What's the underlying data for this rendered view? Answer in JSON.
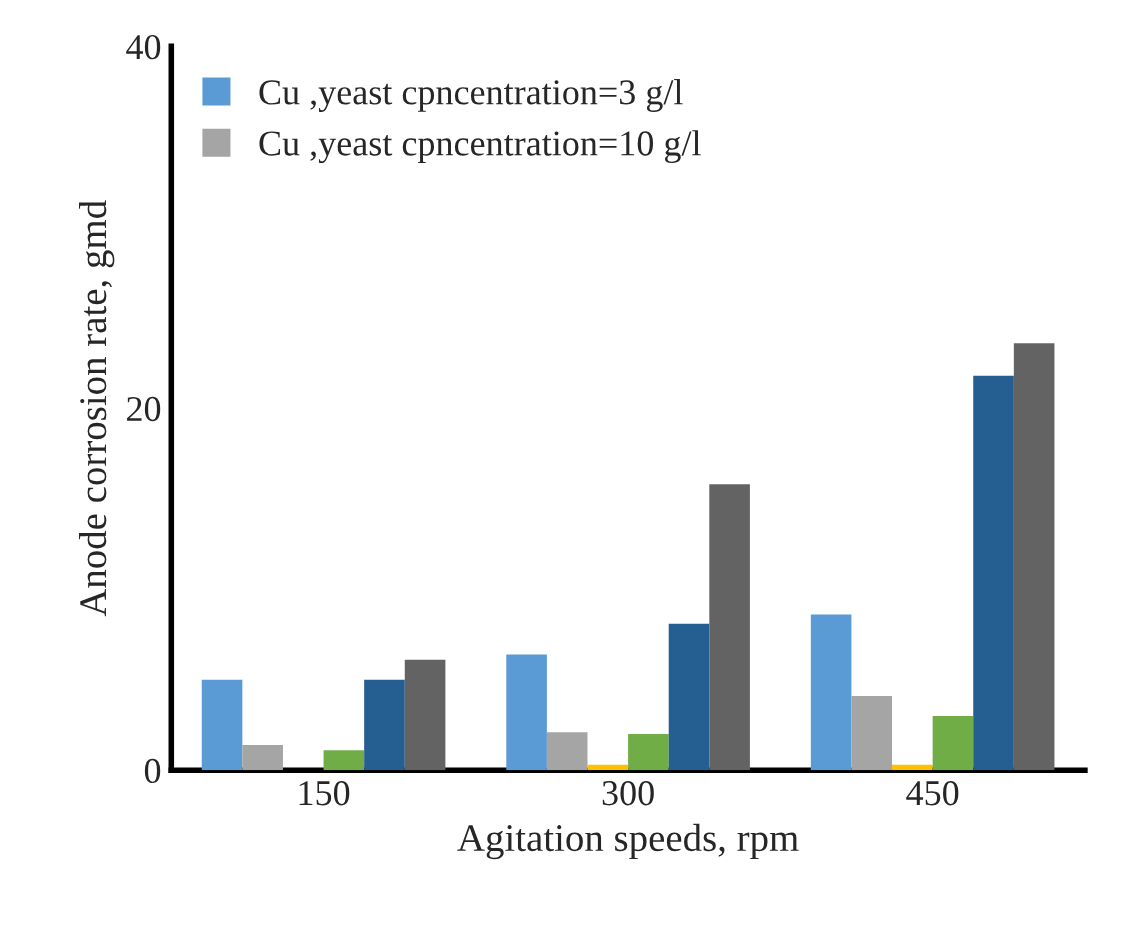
{
  "chart_data": {
    "type": "bar",
    "xlabel": "Agitation speeds, rpm",
    "ylabel": "Anode corrosion rate, gmd",
    "categories": [
      "150",
      "300",
      "450"
    ],
    "series": [
      {
        "name": "Cu ,yeast cpncentration=3 g/l",
        "color": "#5b9bd5",
        "values": [
          5.0,
          6.4,
          8.6
        ]
      },
      {
        "name": "Cu ,yeast cpncentration=10 g/l",
        "color": "#a5a5a5",
        "values": [
          1.4,
          2.1,
          4.1
        ]
      },
      {
        "color": "#ffc000",
        "values": [
          null,
          0.3,
          0.3
        ]
      },
      {
        "color": "#70ad47",
        "values": [
          1.1,
          2.0,
          3.0
        ]
      },
      {
        "color": "#255e91",
        "values": [
          5.0,
          8.1,
          21.8
        ]
      },
      {
        "color": "#636363",
        "values": [
          6.1,
          15.8,
          23.6
        ]
      }
    ],
    "ylim": [
      0,
      40
    ],
    "yticks": [
      0,
      20,
      40
    ],
    "grid": false,
    "legend": "top left"
  }
}
